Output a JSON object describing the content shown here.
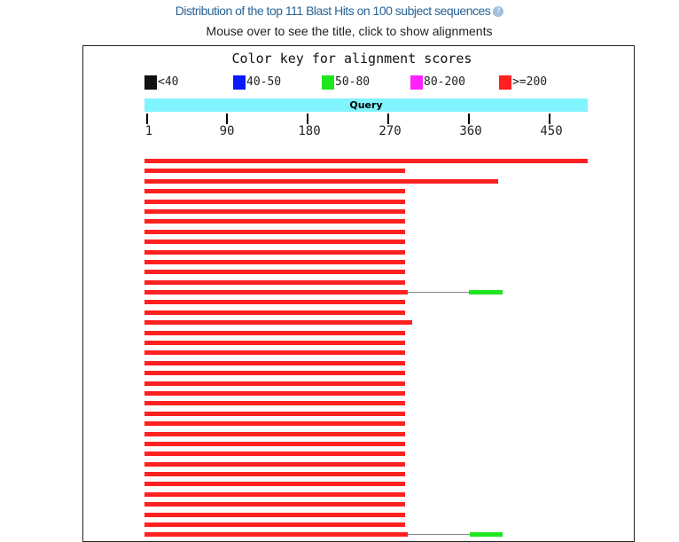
{
  "header": {
    "title": "Distribution of the top 111 Blast Hits on 100 subject sequences",
    "help_icon": "help-icon",
    "subtitle": "Mouse over to see the title, click to show alignments"
  },
  "color_key": {
    "title": "Color key for alignment scores",
    "items": [
      {
        "label": "<40",
        "color": "#111111"
      },
      {
        "label": "40-50",
        "color": "#0a19ff"
      },
      {
        "label": "50-80",
        "color": "#1ee61e"
      },
      {
        "label": "80-200",
        "color": "#ff22ff"
      },
      {
        "label": ">=200",
        "color": "#ff2020"
      }
    ]
  },
  "query": {
    "label": "Query",
    "length": 490,
    "color": "#80f4ff"
  },
  "axis": {
    "ticks": [
      {
        "value": 1,
        "label": "1"
      },
      {
        "value": 90,
        "label": "90"
      },
      {
        "value": 180,
        "label": "180"
      },
      {
        "value": 270,
        "label": "270"
      },
      {
        "value": 360,
        "label": "360"
      },
      {
        "value": 450,
        "label": "450"
      }
    ]
  },
  "hits": [
    {
      "segments": [
        {
          "start": 1,
          "end": 490,
          "score": ">=200"
        }
      ]
    },
    {
      "segments": [
        {
          "start": 1,
          "end": 289,
          "score": ">=200"
        }
      ]
    },
    {
      "segments": [
        {
          "start": 1,
          "end": 391,
          "score": ">=200"
        }
      ]
    },
    {
      "segments": [
        {
          "start": 1,
          "end": 289,
          "score": ">=200"
        }
      ]
    },
    {
      "segments": [
        {
          "start": 1,
          "end": 289,
          "score": ">=200"
        }
      ]
    },
    {
      "segments": [
        {
          "start": 1,
          "end": 289,
          "score": ">=200"
        }
      ]
    },
    {
      "segments": [
        {
          "start": 1,
          "end": 289,
          "score": ">=200"
        }
      ]
    },
    {
      "segments": [
        {
          "start": 1,
          "end": 289,
          "score": ">=200"
        }
      ]
    },
    {
      "segments": [
        {
          "start": 1,
          "end": 289,
          "score": ">=200"
        }
      ]
    },
    {
      "segments": [
        {
          "start": 1,
          "end": 289,
          "score": ">=200"
        }
      ]
    },
    {
      "segments": [
        {
          "start": 1,
          "end": 289,
          "score": ">=200"
        }
      ]
    },
    {
      "segments": [
        {
          "start": 1,
          "end": 289,
          "score": ">=200"
        }
      ]
    },
    {
      "segments": [
        {
          "start": 1,
          "end": 289,
          "score": ">=200"
        }
      ]
    },
    {
      "segments": [
        {
          "start": 1,
          "end": 291,
          "score": ">=200"
        },
        {
          "start": 359,
          "end": 396,
          "score": "50-80"
        }
      ]
    },
    {
      "segments": [
        {
          "start": 1,
          "end": 289,
          "score": ">=200"
        }
      ]
    },
    {
      "segments": [
        {
          "start": 1,
          "end": 289,
          "score": ">=200"
        }
      ]
    },
    {
      "segments": [
        {
          "start": 1,
          "end": 296,
          "score": ">=200"
        }
      ]
    },
    {
      "segments": [
        {
          "start": 1,
          "end": 289,
          "score": ">=200"
        }
      ]
    },
    {
      "segments": [
        {
          "start": 1,
          "end": 289,
          "score": ">=200"
        }
      ]
    },
    {
      "segments": [
        {
          "start": 1,
          "end": 289,
          "score": ">=200"
        }
      ]
    },
    {
      "segments": [
        {
          "start": 1,
          "end": 289,
          "score": ">=200"
        }
      ]
    },
    {
      "segments": [
        {
          "start": 1,
          "end": 289,
          "score": ">=200"
        }
      ]
    },
    {
      "segments": [
        {
          "start": 1,
          "end": 289,
          "score": ">=200"
        }
      ]
    },
    {
      "segments": [
        {
          "start": 1,
          "end": 289,
          "score": ">=200"
        }
      ]
    },
    {
      "segments": [
        {
          "start": 1,
          "end": 289,
          "score": ">=200"
        }
      ]
    },
    {
      "segments": [
        {
          "start": 1,
          "end": 289,
          "score": ">=200"
        }
      ]
    },
    {
      "segments": [
        {
          "start": 1,
          "end": 289,
          "score": ">=200"
        }
      ]
    },
    {
      "segments": [
        {
          "start": 1,
          "end": 289,
          "score": ">=200"
        }
      ]
    },
    {
      "segments": [
        {
          "start": 1,
          "end": 289,
          "score": ">=200"
        }
      ]
    },
    {
      "segments": [
        {
          "start": 1,
          "end": 289,
          "score": ">=200"
        }
      ]
    },
    {
      "segments": [
        {
          "start": 1,
          "end": 289,
          "score": ">=200"
        }
      ]
    },
    {
      "segments": [
        {
          "start": 1,
          "end": 289,
          "score": ">=200"
        }
      ]
    },
    {
      "segments": [
        {
          "start": 1,
          "end": 289,
          "score": ">=200"
        }
      ]
    },
    {
      "segments": [
        {
          "start": 1,
          "end": 289,
          "score": ">=200"
        }
      ]
    },
    {
      "segments": [
        {
          "start": 1,
          "end": 289,
          "score": ">=200"
        }
      ]
    },
    {
      "segments": [
        {
          "start": 1,
          "end": 289,
          "score": ">=200"
        }
      ]
    },
    {
      "segments": [
        {
          "start": 1,
          "end": 289,
          "score": ">=200"
        }
      ]
    },
    {
      "segments": [
        {
          "start": 1,
          "end": 291,
          "score": ">=200"
        },
        {
          "start": 360,
          "end": 396,
          "score": "50-80"
        }
      ]
    }
  ]
}
